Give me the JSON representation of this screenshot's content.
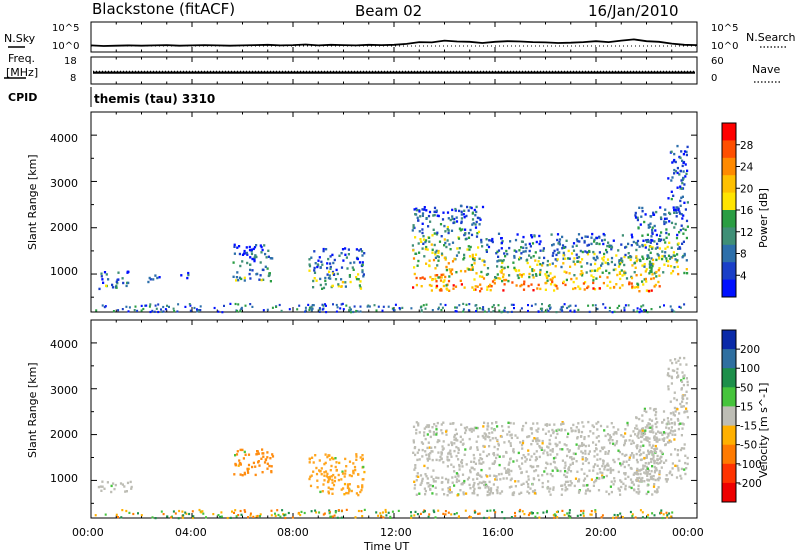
{
  "header": {
    "station": "Blackstone (fitACF)",
    "beam": "Beam 02",
    "date": "16/Jan/2010"
  },
  "chart_data": [
    {
      "type": "line",
      "name": "noise-panel",
      "left_label": "N.Sky",
      "right_label": "N.Search",
      "left_ticks": [
        "10^5",
        "10^0"
      ],
      "right_ticks": [
        "10^5",
        "10^0"
      ],
      "x_range_hours": [
        0,
        24
      ],
      "x": [
        0,
        0.5,
        1,
        1.5,
        2,
        2.5,
        3,
        3.5,
        4,
        4.5,
        5,
        5.5,
        6,
        6.5,
        7,
        7.5,
        8,
        8.5,
        9,
        9.5,
        10,
        10.5,
        11,
        11.5,
        12,
        12.5,
        13,
        13.5,
        14,
        14.5,
        15,
        15.5,
        16,
        16.5,
        17,
        17.5,
        18,
        18.5,
        19,
        19.5,
        20,
        20.5,
        21,
        21.5,
        22,
        22.5,
        23,
        23.5,
        24
      ],
      "y_norm": [
        0.22,
        0.2,
        0.21,
        0.22,
        0.21,
        0.22,
        0.23,
        0.21,
        0.22,
        0.23,
        0.22,
        0.21,
        0.22,
        0.23,
        0.24,
        0.22,
        0.23,
        0.25,
        0.22,
        0.24,
        0.23,
        0.22,
        0.24,
        0.23,
        0.24,
        0.27,
        0.33,
        0.32,
        0.38,
        0.35,
        0.34,
        0.3,
        0.34,
        0.36,
        0.35,
        0.33,
        0.32,
        0.3,
        0.31,
        0.33,
        0.36,
        0.33,
        0.38,
        0.42,
        0.36,
        0.34,
        0.28,
        0.24,
        0.23
      ]
    },
    {
      "type": "line",
      "name": "frequency-panel",
      "left_label": "Freq. [MHz]",
      "right_label": "Nave",
      "left_ticks": [
        "18",
        "8"
      ],
      "right_ticks": [
        "60",
        "0"
      ],
      "x_range_hours": [
        0,
        24
      ],
      "line_level_norm": 0.42,
      "dotted_level_norm": 0.47
    },
    {
      "type": "table",
      "name": "cpid-row",
      "label": "CPID",
      "value": "themis (tau) 3310"
    },
    {
      "type": "heatmap",
      "name": "power-panel",
      "ylabel": "Slant Range [km]",
      "yticks": [
        1000,
        2000,
        3000,
        4000
      ],
      "ylim": [
        180,
        4500
      ],
      "xlim": [
        0,
        24
      ],
      "colorbar": {
        "label": "Power [dB]",
        "ticks": [
          "28",
          "24",
          "20",
          "16",
          "12",
          "8",
          "4"
        ],
        "colors": [
          "#ff0000",
          "#ff4f00",
          "#ff8a00",
          "#ffc000",
          "#ffe400",
          "#2a9d43",
          "#3f8f76",
          "#2d6faa",
          "#1a3fc8",
          "#0010ff"
        ]
      },
      "regions": [
        {
          "t": [
            0.25,
            1.5
          ],
          "r": [
            700,
            1100
          ],
          "level": 0.3
        },
        {
          "t": [
            2.2,
            2.8
          ],
          "r": [
            850,
            1050
          ],
          "level": 0.2
        },
        {
          "t": [
            3.5,
            3.9
          ],
          "r": [
            880,
            1050
          ],
          "level": 0.25
        },
        {
          "t": [
            5.6,
            7.2
          ],
          "r": [
            850,
            1700
          ],
          "level": 0.35
        },
        {
          "t": [
            8.6,
            10.8
          ],
          "r": [
            700,
            1600
          ],
          "level": 0.45
        },
        {
          "t": [
            12.7,
            15.5
          ],
          "r": [
            650,
            2500
          ],
          "level": 0.8
        },
        {
          "t": [
            15.5,
            22.5
          ],
          "r": [
            650,
            1900
          ],
          "level": 0.75
        },
        {
          "t": [
            21.5,
            23.6
          ],
          "r": [
            1000,
            2500
          ],
          "level": 0.55
        },
        {
          "t": [
            22.8,
            23.6
          ],
          "r": [
            2500,
            3800
          ],
          "level": 0.2
        }
      ]
    },
    {
      "type": "heatmap",
      "name": "velocity-panel",
      "ylabel": "Slant Range [km]",
      "yticks": [
        1000,
        2000,
        3000,
        4000
      ],
      "ylim": [
        180,
        4500
      ],
      "xlim": [
        0,
        24
      ],
      "xticks": [
        "00:00",
        "04:00",
        "08:00",
        "12:00",
        "16:00",
        "20:00",
        "00:00"
      ],
      "xlabel": "Time UT",
      "colorbar": {
        "label": "Velocity [m s^-1]",
        "ticks": [
          "200",
          "100",
          "50",
          "15",
          "-15",
          "-50",
          "-100",
          "-200"
        ],
        "colors": [
          "#0a2aa8",
          "#2f6fa0",
          "#1d8f4a",
          "#46c43c",
          "#bdbdb5",
          "#ffb000",
          "#ff7a00",
          "#ff3300",
          "#ee0000"
        ]
      },
      "regions": [
        {
          "t": [
            0.25,
            1.6
          ],
          "r": [
            750,
            1000
          ],
          "color": "#bdbdb5"
        },
        {
          "t": [
            5.6,
            7.2
          ],
          "r": [
            1100,
            1700
          ],
          "color": "#ff8c10"
        },
        {
          "t": [
            8.6,
            10.8
          ],
          "r": [
            700,
            1600
          ],
          "color": "#ffa51f"
        },
        {
          "t": [
            12.7,
            22.5
          ],
          "r": [
            700,
            2300
          ],
          "color": "#bdbdb5"
        },
        {
          "t": [
            21.5,
            23.6
          ],
          "r": [
            1000,
            2600
          ],
          "color": "#bdbdb5"
        },
        {
          "t": [
            22.8,
            23.6
          ],
          "r": [
            2600,
            3700
          ],
          "color": "#bdbdb5"
        }
      ]
    }
  ]
}
